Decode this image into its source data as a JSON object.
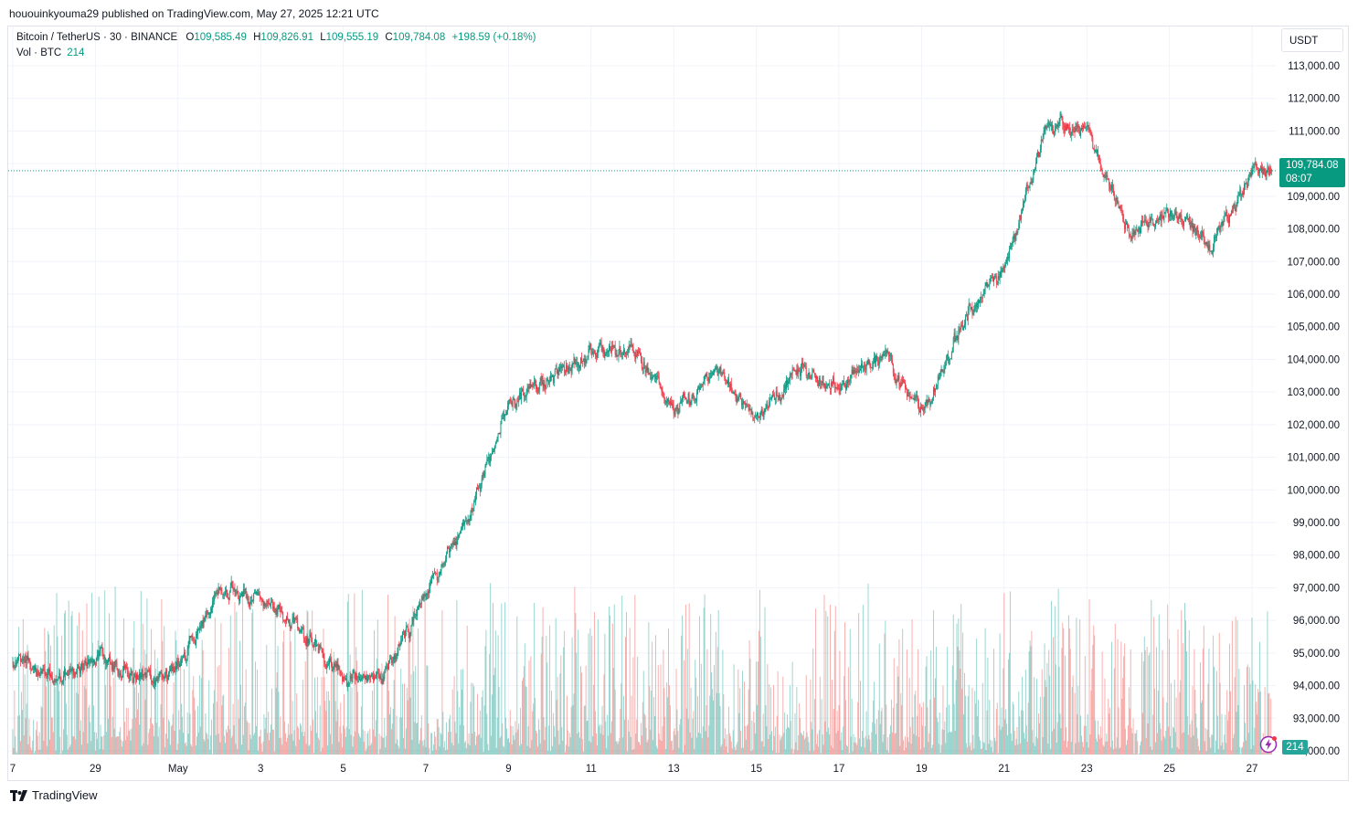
{
  "header": {
    "published": "hououinkyouma29 published on TradingView.com, May 27, 2025 12:21 UTC"
  },
  "legend": {
    "symbol": "Bitcoin / TetherUS · 30 · BINANCE",
    "o_label": "O",
    "o_value": "109,585.49",
    "h_label": "H",
    "h_value": "109,826.91",
    "l_label": "L",
    "l_value": "109,555.19",
    "c_label": "C",
    "c_value": "109,784.08",
    "change": "+198.59 (+0.18%)",
    "vol_label": "Vol · BTC",
    "vol_value": "214"
  },
  "axis": {
    "currency": "USDT",
    "last_price": "109,784.08",
    "countdown": "08:07",
    "last_volume": "214"
  },
  "brand": {
    "name": "TradingView"
  },
  "colors": {
    "up": "#089981",
    "down": "#f23645",
    "vol_up": "#26a69a",
    "vol_down": "#ef5350"
  },
  "chart_data": {
    "type": "candlestick",
    "interval": "30",
    "y_unit": "USDT",
    "ylim": [
      91500,
      113500
    ],
    "y_ticks": [
      92000,
      93000,
      94000,
      95000,
      96000,
      97000,
      98000,
      99000,
      100000,
      101000,
      102000,
      103000,
      104000,
      105000,
      106000,
      107000,
      108000,
      109000,
      110000,
      111000,
      112000,
      113000
    ],
    "x_tick_labels": [
      "7",
      "29",
      "May",
      "3",
      "5",
      "7",
      "9",
      "11",
      "13",
      "15",
      "17",
      "19",
      "21",
      "23",
      "25",
      "27"
    ],
    "grid": true,
    "last_price": 109784.08,
    "approx_close_path": [
      [
        "2025-04-27",
        94700
      ],
      [
        "2025-04-28",
        94100
      ],
      [
        "2025-04-29",
        94900
      ],
      [
        "2025-04-30",
        94300
      ],
      [
        "2025-05-01",
        94600
      ],
      [
        "2025-05-02",
        96900
      ],
      [
        "2025-05-03",
        96700
      ],
      [
        "2025-05-04",
        95600
      ],
      [
        "2025-05-05",
        94200
      ],
      [
        "2025-05-06",
        94400
      ],
      [
        "2025-05-07",
        96800
      ],
      [
        "2025-05-08",
        99200
      ],
      [
        "2025-05-09",
        102800
      ],
      [
        "2025-05-10",
        103300
      ],
      [
        "2025-05-11",
        104200
      ],
      [
        "2025-05-12",
        104300
      ],
      [
        "2025-05-13",
        102300
      ],
      [
        "2025-05-14",
        103700
      ],
      [
        "2025-05-15",
        102200
      ],
      [
        "2025-05-16",
        103800
      ],
      [
        "2025-05-17",
        103100
      ],
      [
        "2025-05-18",
        104200
      ],
      [
        "2025-05-19",
        102300
      ],
      [
        "2025-05-20",
        105200
      ],
      [
        "2025-05-21",
        106900
      ],
      [
        "2025-05-22",
        111300
      ],
      [
        "2025-05-23",
        110900
      ],
      [
        "2025-05-24",
        107800
      ],
      [
        "2025-05-25",
        108500
      ],
      [
        "2025-05-26",
        107500
      ],
      [
        "2025-05-27",
        109784
      ]
    ]
  }
}
